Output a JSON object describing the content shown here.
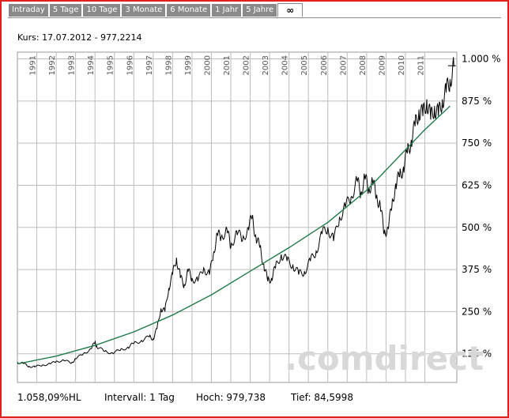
{
  "tabs": [
    {
      "label": "Intraday",
      "active": false
    },
    {
      "label": "5 Tage",
      "active": false
    },
    {
      "label": "10 Tage",
      "active": false
    },
    {
      "label": "3 Monate",
      "active": false
    },
    {
      "label": "6 Monate",
      "active": false
    },
    {
      "label": "1 Jahr",
      "active": false
    },
    {
      "label": "5 Jahre",
      "active": false
    },
    {
      "label": "∞",
      "active": true
    }
  ],
  "header": {
    "kurs": "Kurs: 17.07.2012 - 977,2214"
  },
  "watermark": ".comdirect",
  "footer": {
    "change": "1.058,09%HL",
    "interval": "Intervall: 1 Tag",
    "high": "Hoch:  979,738",
    "low": "Tief: 84,5998"
  },
  "colors": {
    "frame": "#e4201c",
    "price_line": "#000000",
    "trend_line": "#1f7a4a",
    "grid": "#bdbdbd",
    "tab_bg": "#8a8a8a"
  },
  "chart_data": {
    "type": "line",
    "x_labels": [
      "1991",
      "1992",
      "1993",
      "1994",
      "1995",
      "1996",
      "1997",
      "1998",
      "1999",
      "2000",
      "2001",
      "2002",
      "2003",
      "2004",
      "2005",
      "2006",
      "2007",
      "2008",
      "2009",
      "2010",
      "2011"
    ],
    "y_ticks": [
      125,
      250,
      375,
      500,
      625,
      750,
      875,
      1000
    ],
    "y_tick_labels": [
      "125 %",
      "250 %",
      "375 %",
      "500 %",
      "625 %",
      "750 %",
      "875 %",
      "1.000 %"
    ],
    "ylim": [
      40,
      1020
    ],
    "xlim": [
      1990.0,
      2012.65
    ],
    "grid": true,
    "series": [
      {
        "kind": "price",
        "points": [
          [
            1990.0,
            100
          ],
          [
            1990.3,
            96
          ],
          [
            1990.6,
            88
          ],
          [
            1990.9,
            86
          ],
          [
            1991.3,
            92
          ],
          [
            1991.7,
            95
          ],
          [
            1992.0,
            103
          ],
          [
            1992.4,
            105
          ],
          [
            1992.8,
            98
          ],
          [
            1993.0,
            110
          ],
          [
            1993.4,
            125
          ],
          [
            1993.8,
            140
          ],
          [
            1994.0,
            160
          ],
          [
            1994.1,
            145
          ],
          [
            1994.5,
            132
          ],
          [
            1994.9,
            128
          ],
          [
            1995.3,
            135
          ],
          [
            1995.7,
            145
          ],
          [
            1996.0,
            155
          ],
          [
            1996.4,
            165
          ],
          [
            1996.8,
            175
          ],
          [
            1997.0,
            170
          ],
          [
            1997.2,
            200
          ],
          [
            1997.4,
            260
          ],
          [
            1997.6,
            250
          ],
          [
            1997.8,
            320
          ],
          [
            1998.0,
            360
          ],
          [
            1998.2,
            410
          ],
          [
            1998.4,
            350
          ],
          [
            1998.6,
            330
          ],
          [
            1998.8,
            370
          ],
          [
            1999.0,
            350
          ],
          [
            1999.3,
            340
          ],
          [
            1999.6,
            380
          ],
          [
            1999.9,
            360
          ],
          [
            2000.1,
            420
          ],
          [
            2000.3,
            480
          ],
          [
            2000.5,
            470
          ],
          [
            2000.8,
            495
          ],
          [
            2001.0,
            440
          ],
          [
            2001.3,
            490
          ],
          [
            2001.6,
            460
          ],
          [
            2001.9,
            500
          ],
          [
            2002.1,
            530
          ],
          [
            2002.3,
            470
          ],
          [
            2002.5,
            440
          ],
          [
            2002.7,
            390
          ],
          [
            2002.9,
            340
          ],
          [
            2003.1,
            350
          ],
          [
            2003.3,
            380
          ],
          [
            2003.6,
            420
          ],
          [
            2003.9,
            400
          ],
          [
            2004.2,
            390
          ],
          [
            2004.5,
            360
          ],
          [
            2004.8,
            370
          ],
          [
            2005.1,
            400
          ],
          [
            2005.4,
            430
          ],
          [
            2005.7,
            480
          ],
          [
            2006.0,
            500
          ],
          [
            2006.3,
            460
          ],
          [
            2006.6,
            530
          ],
          [
            2006.9,
            560
          ],
          [
            2007.2,
            590
          ],
          [
            2007.5,
            640
          ],
          [
            2007.7,
            600
          ],
          [
            2007.9,
            650
          ],
          [
            2008.1,
            610
          ],
          [
            2008.3,
            640
          ],
          [
            2008.5,
            590
          ],
          [
            2008.7,
            570
          ],
          [
            2008.9,
            480
          ],
          [
            2009.1,
            500
          ],
          [
            2009.3,
            560
          ],
          [
            2009.5,
            630
          ],
          [
            2009.7,
            650
          ],
          [
            2009.9,
            680
          ],
          [
            2010.1,
            720
          ],
          [
            2010.3,
            760
          ],
          [
            2010.5,
            800
          ],
          [
            2010.7,
            850
          ],
          [
            2010.9,
            830
          ],
          [
            2011.1,
            880
          ],
          [
            2011.3,
            820
          ],
          [
            2011.5,
            860
          ],
          [
            2011.7,
            830
          ],
          [
            2011.9,
            880
          ],
          [
            2012.1,
            900
          ],
          [
            2012.3,
            940
          ],
          [
            2012.5,
            977
          ]
        ]
      },
      {
        "kind": "trend",
        "points": [
          [
            1990.0,
            95
          ],
          [
            1992.0,
            118
          ],
          [
            1994.0,
            150
          ],
          [
            1996.0,
            190
          ],
          [
            1998.0,
            240
          ],
          [
            2000.0,
            300
          ],
          [
            2002.0,
            370
          ],
          [
            2004.0,
            440
          ],
          [
            2006.0,
            515
          ],
          [
            2008.0,
            610
          ],
          [
            2010.0,
            730
          ],
          [
            2011.0,
            790
          ],
          [
            2012.3,
            860
          ]
        ]
      }
    ],
    "high_marker": 979.738
  }
}
